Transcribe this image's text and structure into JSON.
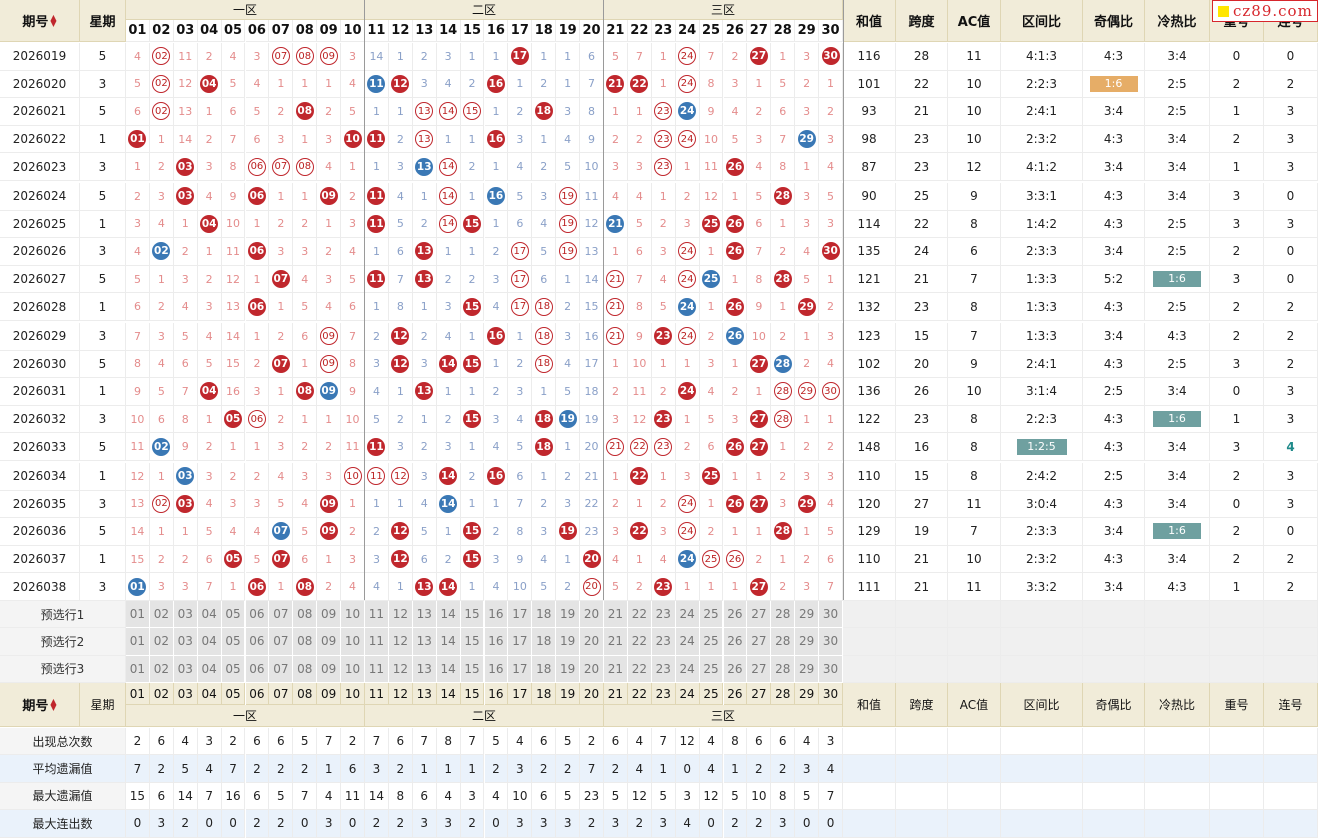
{
  "logo": "cz89.com",
  "header": {
    "qihao": "期号",
    "xingqi": "星期",
    "zone1": "一区",
    "zone2": "二区",
    "zone3": "三区",
    "sum": "和值",
    "span": "跨度",
    "ac": "AC值",
    "ratio_zone": "区间比",
    "ratio_oe": "奇偶比",
    "ratio_hc": "冷热比",
    "repeat": "重号",
    "consec": "连号"
  },
  "numbers": [
    "01",
    "02",
    "03",
    "04",
    "05",
    "06",
    "07",
    "08",
    "09",
    "10",
    "11",
    "12",
    "13",
    "14",
    "15",
    "16",
    "17",
    "18",
    "19",
    "20",
    "21",
    "22",
    "23",
    "24",
    "25",
    "26",
    "27",
    "28",
    "29",
    "30"
  ],
  "colors": {
    "red_ball": "#c0272d",
    "blue_ball": "#3a78b5",
    "miss_red": "#e48c8c",
    "miss_blue": "#8aa0c8",
    "tag_orange": "#e6ad67",
    "tag_teal": "#6fa0a0",
    "header_bg": "#f1ecd9"
  },
  "rows": [
    {
      "qh": "2026019",
      "xq": "5",
      "cells": [
        "4",
        "r:02",
        "11",
        "2",
        "4",
        "3",
        "r:07",
        "b:08",
        "r:09",
        "3",
        "14",
        "1",
        "2",
        "3",
        "1",
        "1",
        "R:17",
        "1",
        "1",
        "6",
        "5",
        "7",
        "1",
        "r:24",
        "7",
        "2",
        "R:27",
        "1",
        "3",
        "R:30"
      ],
      "sum": "116",
      "span": "28",
      "ac": "11",
      "zone": "4:1:3",
      "oe": "4:3",
      "hc": "3:4",
      "rep": "0",
      "con": "0"
    },
    {
      "qh": "2026020",
      "xq": "3",
      "cells": [
        "5",
        "r:02",
        "12",
        "R:04",
        "5",
        "4",
        "1",
        "1",
        "1",
        "4",
        "B:11",
        "R:12",
        "3",
        "4",
        "2",
        "R:16",
        "1",
        "2",
        "1",
        "7",
        "R:21",
        "R:22",
        "1",
        "r:24",
        "8",
        "3",
        "1",
        "5",
        "2",
        "1"
      ],
      "sum": "101",
      "span": "22",
      "ac": "10",
      "zone": "2:2:3",
      "oe": "1:6",
      "oe_tag": "orange",
      "hc": "2:5",
      "rep": "2",
      "con": "2"
    },
    {
      "qh": "2026021",
      "xq": "5",
      "cells": [
        "6",
        "r:02",
        "13",
        "1",
        "6",
        "5",
        "2",
        "R:08",
        "2",
        "5",
        "1",
        "1",
        "r:13",
        "r:14",
        "r:15",
        "1",
        "2",
        "R:18",
        "3",
        "8",
        "1",
        "1",
        "r:23",
        "B:24",
        "9",
        "4",
        "2",
        "6",
        "3",
        "2"
      ],
      "sum": "93",
      "span": "21",
      "ac": "10",
      "zone": "2:4:1",
      "oe": "3:4",
      "hc": "2:5",
      "rep": "1",
      "con": "3"
    },
    {
      "qh": "2026022",
      "xq": "1",
      "cells": [
        "R:01",
        "1",
        "14",
        "2",
        "7",
        "6",
        "3",
        "1",
        "3",
        "R:10",
        "R:11",
        "2",
        "r:13",
        "1",
        "1",
        "R:16",
        "3",
        "1",
        "4",
        "9",
        "2",
        "2",
        "r:23",
        "r:24",
        "10",
        "5",
        "3",
        "7",
        "B:29",
        "3"
      ],
      "sum": "98",
      "span": "23",
      "ac": "10",
      "zone": "2:3:2",
      "oe": "4:3",
      "hc": "3:4",
      "rep": "2",
      "con": "3"
    },
    {
      "qh": "2026023",
      "xq": "3",
      "cells": [
        "1",
        "2",
        "R:03",
        "3",
        "8",
        "r:06",
        "r:07",
        "r:08",
        "4",
        "1",
        "1",
        "3",
        "B:13",
        "r:14",
        "2",
        "1",
        "4",
        "2",
        "5",
        "10",
        "3",
        "3",
        "r:23",
        "1",
        "11",
        "R:26",
        "4",
        "8",
        "1",
        "4"
      ],
      "sum": "87",
      "span": "23",
      "ac": "12",
      "zone": "4:1:2",
      "oe": "3:4",
      "hc": "3:4",
      "rep": "1",
      "con": "3"
    },
    {
      "qh": "2026024",
      "xq": "5",
      "cells": [
        "2",
        "3",
        "R:03",
        "4",
        "9",
        "R:06",
        "1",
        "1",
        "R:09",
        "2",
        "R:11",
        "4",
        "1",
        "r:14",
        "1",
        "B:16",
        "5",
        "3",
        "r:19",
        "11",
        "4",
        "4",
        "1",
        "2",
        "12",
        "1",
        "5",
        "R:28",
        "3",
        "5"
      ],
      "sum": "90",
      "span": "25",
      "ac": "9",
      "zone": "3:3:1",
      "oe": "4:3",
      "hc": "3:4",
      "rep": "3",
      "con": "0"
    },
    {
      "qh": "2026025",
      "xq": "1",
      "cells": [
        "3",
        "4",
        "1",
        "R:04",
        "10",
        "1",
        "2",
        "2",
        "1",
        "3",
        "R:11",
        "5",
        "2",
        "r:14",
        "R:15",
        "1",
        "6",
        "4",
        "r:19",
        "12",
        "B:21",
        "5",
        "2",
        "3",
        "R:25",
        "R:26",
        "6",
        "1",
        "3",
        "3"
      ],
      "sum": "114",
      "span": "22",
      "ac": "8",
      "zone": "1:4:2",
      "oe": "4:3",
      "hc": "2:5",
      "rep": "3",
      "con": "3"
    },
    {
      "qh": "2026026",
      "xq": "3",
      "cells": [
        "4",
        "B:02",
        "2",
        "1",
        "11",
        "R:06",
        "3",
        "3",
        "2",
        "4",
        "1",
        "6",
        "R:13",
        "1",
        "1",
        "2",
        "r:17",
        "5",
        "r:19",
        "13",
        "1",
        "6",
        "3",
        "r:24",
        "1",
        "R:26",
        "7",
        "2",
        "4",
        "R:30"
      ],
      "sum": "135",
      "span": "24",
      "ac": "6",
      "zone": "2:3:3",
      "oe": "3:4",
      "hc": "2:5",
      "rep": "2",
      "con": "0"
    },
    {
      "qh": "2026027",
      "xq": "5",
      "cells": [
        "5",
        "1",
        "3",
        "2",
        "12",
        "1",
        "R:07",
        "4",
        "3",
        "5",
        "R:11",
        "7",
        "R:13",
        "2",
        "2",
        "3",
        "r:17",
        "6",
        "1",
        "14",
        "r:21",
        "7",
        "4",
        "r:24",
        "B:25",
        "1",
        "8",
        "R:28",
        "5",
        "1"
      ],
      "sum": "121",
      "span": "21",
      "ac": "7",
      "zone": "1:3:3",
      "oe": "5:2",
      "hc": "1:6",
      "hc_tag": "teal",
      "rep": "3",
      "con": "0"
    },
    {
      "qh": "2026028",
      "xq": "1",
      "cells": [
        "6",
        "2",
        "4",
        "3",
        "13",
        "R:06",
        "1",
        "5",
        "4",
        "6",
        "1",
        "8",
        "1",
        "3",
        "R:15",
        "4",
        "r:17",
        "r:18",
        "2",
        "15",
        "r:21",
        "8",
        "5",
        "B:24",
        "1",
        "R:26",
        "9",
        "1",
        "R:29",
        "2"
      ],
      "sum": "132",
      "span": "23",
      "ac": "8",
      "zone": "1:3:3",
      "oe": "4:3",
      "hc": "2:5",
      "rep": "2",
      "con": "2"
    },
    {
      "qh": "2026029",
      "xq": "3",
      "cells": [
        "7",
        "3",
        "5",
        "4",
        "14",
        "1",
        "2",
        "6",
        "r:09",
        "7",
        "2",
        "R:12",
        "2",
        "4",
        "1",
        "R:16",
        "1",
        "r:18",
        "3",
        "16",
        "r:21",
        "9",
        "R:23",
        "r:24",
        "2",
        "B:26",
        "10",
        "2",
        "1",
        "3"
      ],
      "sum": "123",
      "span": "15",
      "ac": "7",
      "zone": "1:3:3",
      "oe": "3:4",
      "hc": "4:3",
      "rep": "2",
      "con": "2"
    },
    {
      "qh": "2026030",
      "xq": "5",
      "cells": [
        "8",
        "4",
        "6",
        "5",
        "15",
        "2",
        "R:07",
        "1",
        "r:09",
        "8",
        "3",
        "R:12",
        "3",
        "R:14",
        "R:15",
        "1",
        "2",
        "r:18",
        "4",
        "17",
        "1",
        "10",
        "1",
        "1",
        "3",
        "1",
        "R:27",
        "B:28",
        "2",
        "4"
      ],
      "sum": "102",
      "span": "20",
      "ac": "9",
      "zone": "2:4:1",
      "oe": "4:3",
      "hc": "2:5",
      "rep": "3",
      "con": "2"
    },
    {
      "qh": "2026031",
      "xq": "1",
      "cells": [
        "9",
        "5",
        "7",
        "R:04",
        "16",
        "3",
        "1",
        "R:08",
        "B:09",
        "9",
        "4",
        "1",
        "R:13",
        "1",
        "1",
        "2",
        "3",
        "1",
        "5",
        "18",
        "2",
        "11",
        "2",
        "R:24",
        "4",
        "2",
        "1",
        "r:28",
        "r:29",
        "r:30"
      ],
      "sum": "136",
      "span": "26",
      "ac": "10",
      "zone": "3:1:4",
      "oe": "2:5",
      "hc": "3:4",
      "rep": "0",
      "con": "3"
    },
    {
      "qh": "2026032",
      "xq": "3",
      "cells": [
        "10",
        "6",
        "8",
        "1",
        "R:05",
        "r:06",
        "2",
        "1",
        "1",
        "10",
        "5",
        "2",
        "1",
        "2",
        "R:15",
        "3",
        "4",
        "R:18",
        "B:19",
        "19",
        "3",
        "12",
        "R:23",
        "1",
        "5",
        "3",
        "R:27",
        "r:28",
        "1",
        "1"
      ],
      "sum": "122",
      "span": "23",
      "ac": "8",
      "zone": "2:2:3",
      "oe": "4:3",
      "hc": "1:6",
      "hc_tag": "teal",
      "rep": "1",
      "con": "3"
    },
    {
      "qh": "2026033",
      "xq": "5",
      "cells": [
        "11",
        "B:02",
        "9",
        "2",
        "1",
        "1",
        "3",
        "2",
        "2",
        "11",
        "R:11",
        "3",
        "2",
        "3",
        "1",
        "4",
        "5",
        "R:18",
        "1",
        "20",
        "r:21",
        "r:22",
        "r:23",
        "2",
        "6",
        "R:26",
        "R:27",
        "1",
        "2",
        "2"
      ],
      "sum": "148",
      "span": "16",
      "ac": "8",
      "zone": "1:2:5",
      "zone_tag": "teal",
      "oe": "4:3",
      "hc": "3:4",
      "rep": "3",
      "con": "4",
      "con_hl": true
    },
    {
      "qh": "2026034",
      "xq": "1",
      "cells": [
        "12",
        "1",
        "B:03",
        "3",
        "2",
        "2",
        "4",
        "3",
        "3",
        "r:10",
        "r:11",
        "r:12",
        "3",
        "R:14",
        "2",
        "R:16",
        "6",
        "1",
        "2",
        "21",
        "1",
        "R:22",
        "1",
        "3",
        "R:25",
        "1",
        "1",
        "2",
        "3",
        "3"
      ],
      "sum": "110",
      "span": "15",
      "ac": "8",
      "zone": "2:4:2",
      "oe": "2:5",
      "hc": "3:4",
      "rep": "2",
      "con": "3"
    },
    {
      "qh": "2026035",
      "xq": "3",
      "cells": [
        "13",
        "r:02",
        "R:03",
        "4",
        "3",
        "3",
        "5",
        "4",
        "R:09",
        "1",
        "1",
        "1",
        "4",
        "B:14",
        "1",
        "1",
        "7",
        "2",
        "3",
        "22",
        "2",
        "1",
        "2",
        "r:24",
        "1",
        "R:26",
        "R:27",
        "3",
        "R:29",
        "4"
      ],
      "sum": "120",
      "span": "27",
      "ac": "11",
      "zone": "3:0:4",
      "oe": "4:3",
      "hc": "3:4",
      "rep": "0",
      "con": "3"
    },
    {
      "qh": "2026036",
      "xq": "5",
      "cells": [
        "14",
        "1",
        "1",
        "5",
        "4",
        "4",
        "B:07",
        "5",
        "R:09",
        "2",
        "2",
        "R:12",
        "5",
        "1",
        "R:15",
        "2",
        "8",
        "3",
        "R:19",
        "23",
        "3",
        "R:22",
        "3",
        "r:24",
        "2",
        "1",
        "1",
        "R:28",
        "1",
        "5"
      ],
      "sum": "129",
      "span": "19",
      "ac": "7",
      "zone": "2:3:3",
      "oe": "3:4",
      "hc": "1:6",
      "hc_tag": "teal",
      "rep": "2",
      "con": "0"
    },
    {
      "qh": "2026037",
      "xq": "1",
      "cells": [
        "15",
        "2",
        "2",
        "6",
        "R:05",
        "5",
        "R:07",
        "6",
        "1",
        "3",
        "3",
        "R:12",
        "6",
        "2",
        "R:15",
        "3",
        "9",
        "4",
        "1",
        "R:20",
        "4",
        "1",
        "4",
        "B:24",
        "r:25",
        "r:26",
        "2",
        "1",
        "2",
        "6"
      ],
      "sum": "110",
      "span": "21",
      "ac": "10",
      "zone": "2:3:2",
      "oe": "4:3",
      "hc": "3:4",
      "rep": "2",
      "con": "2"
    },
    {
      "qh": "2026038",
      "xq": "3",
      "cells": [
        "B:01",
        "3",
        "3",
        "7",
        "1",
        "R:06",
        "1",
        "R:08",
        "2",
        "4",
        "4",
        "1",
        "R:13",
        "R:14",
        "1",
        "4",
        "10",
        "5",
        "2",
        "r:20",
        "5",
        "2",
        "R:23",
        "1",
        "1",
        "1",
        "R:27",
        "2",
        "3",
        "7"
      ],
      "sum": "111",
      "span": "21",
      "ac": "11",
      "zone": "3:3:2",
      "oe": "3:4",
      "hc": "4:3",
      "rep": "1",
      "con": "2"
    }
  ],
  "preselect": [
    "预选行1",
    "预选行2",
    "预选行3"
  ],
  "stats": [
    {
      "label": "出现总次数",
      "values": [
        "2",
        "6",
        "4",
        "3",
        "2",
        "6",
        "6",
        "5",
        "7",
        "2",
        "7",
        "6",
        "7",
        "8",
        "7",
        "5",
        "4",
        "6",
        "5",
        "2",
        "6",
        "4",
        "7",
        "12",
        "4",
        "8",
        "6",
        "6",
        "4",
        "3"
      ]
    },
    {
      "label": "平均遗漏值",
      "values": [
        "7",
        "2",
        "5",
        "4",
        "7",
        "2",
        "2",
        "2",
        "1",
        "6",
        "3",
        "2",
        "1",
        "1",
        "1",
        "2",
        "3",
        "2",
        "2",
        "7",
        "2",
        "4",
        "1",
        "0",
        "4",
        "1",
        "2",
        "2",
        "3",
        "4"
      ]
    },
    {
      "label": "最大遗漏值",
      "values": [
        "15",
        "6",
        "14",
        "7",
        "16",
        "6",
        "5",
        "7",
        "4",
        "11",
        "14",
        "8",
        "6",
        "4",
        "3",
        "4",
        "10",
        "6",
        "5",
        "23",
        "5",
        "12",
        "5",
        "3",
        "12",
        "5",
        "10",
        "8",
        "5",
        "7"
      ]
    },
    {
      "label": "最大连出数",
      "values": [
        "0",
        "3",
        "2",
        "0",
        "0",
        "2",
        "2",
        "0",
        "3",
        "0",
        "2",
        "2",
        "3",
        "3",
        "2",
        "0",
        "3",
        "3",
        "3",
        "2",
        "3",
        "2",
        "3",
        "4",
        "0",
        "2",
        "2",
        "3",
        "0",
        "0"
      ]
    }
  ]
}
